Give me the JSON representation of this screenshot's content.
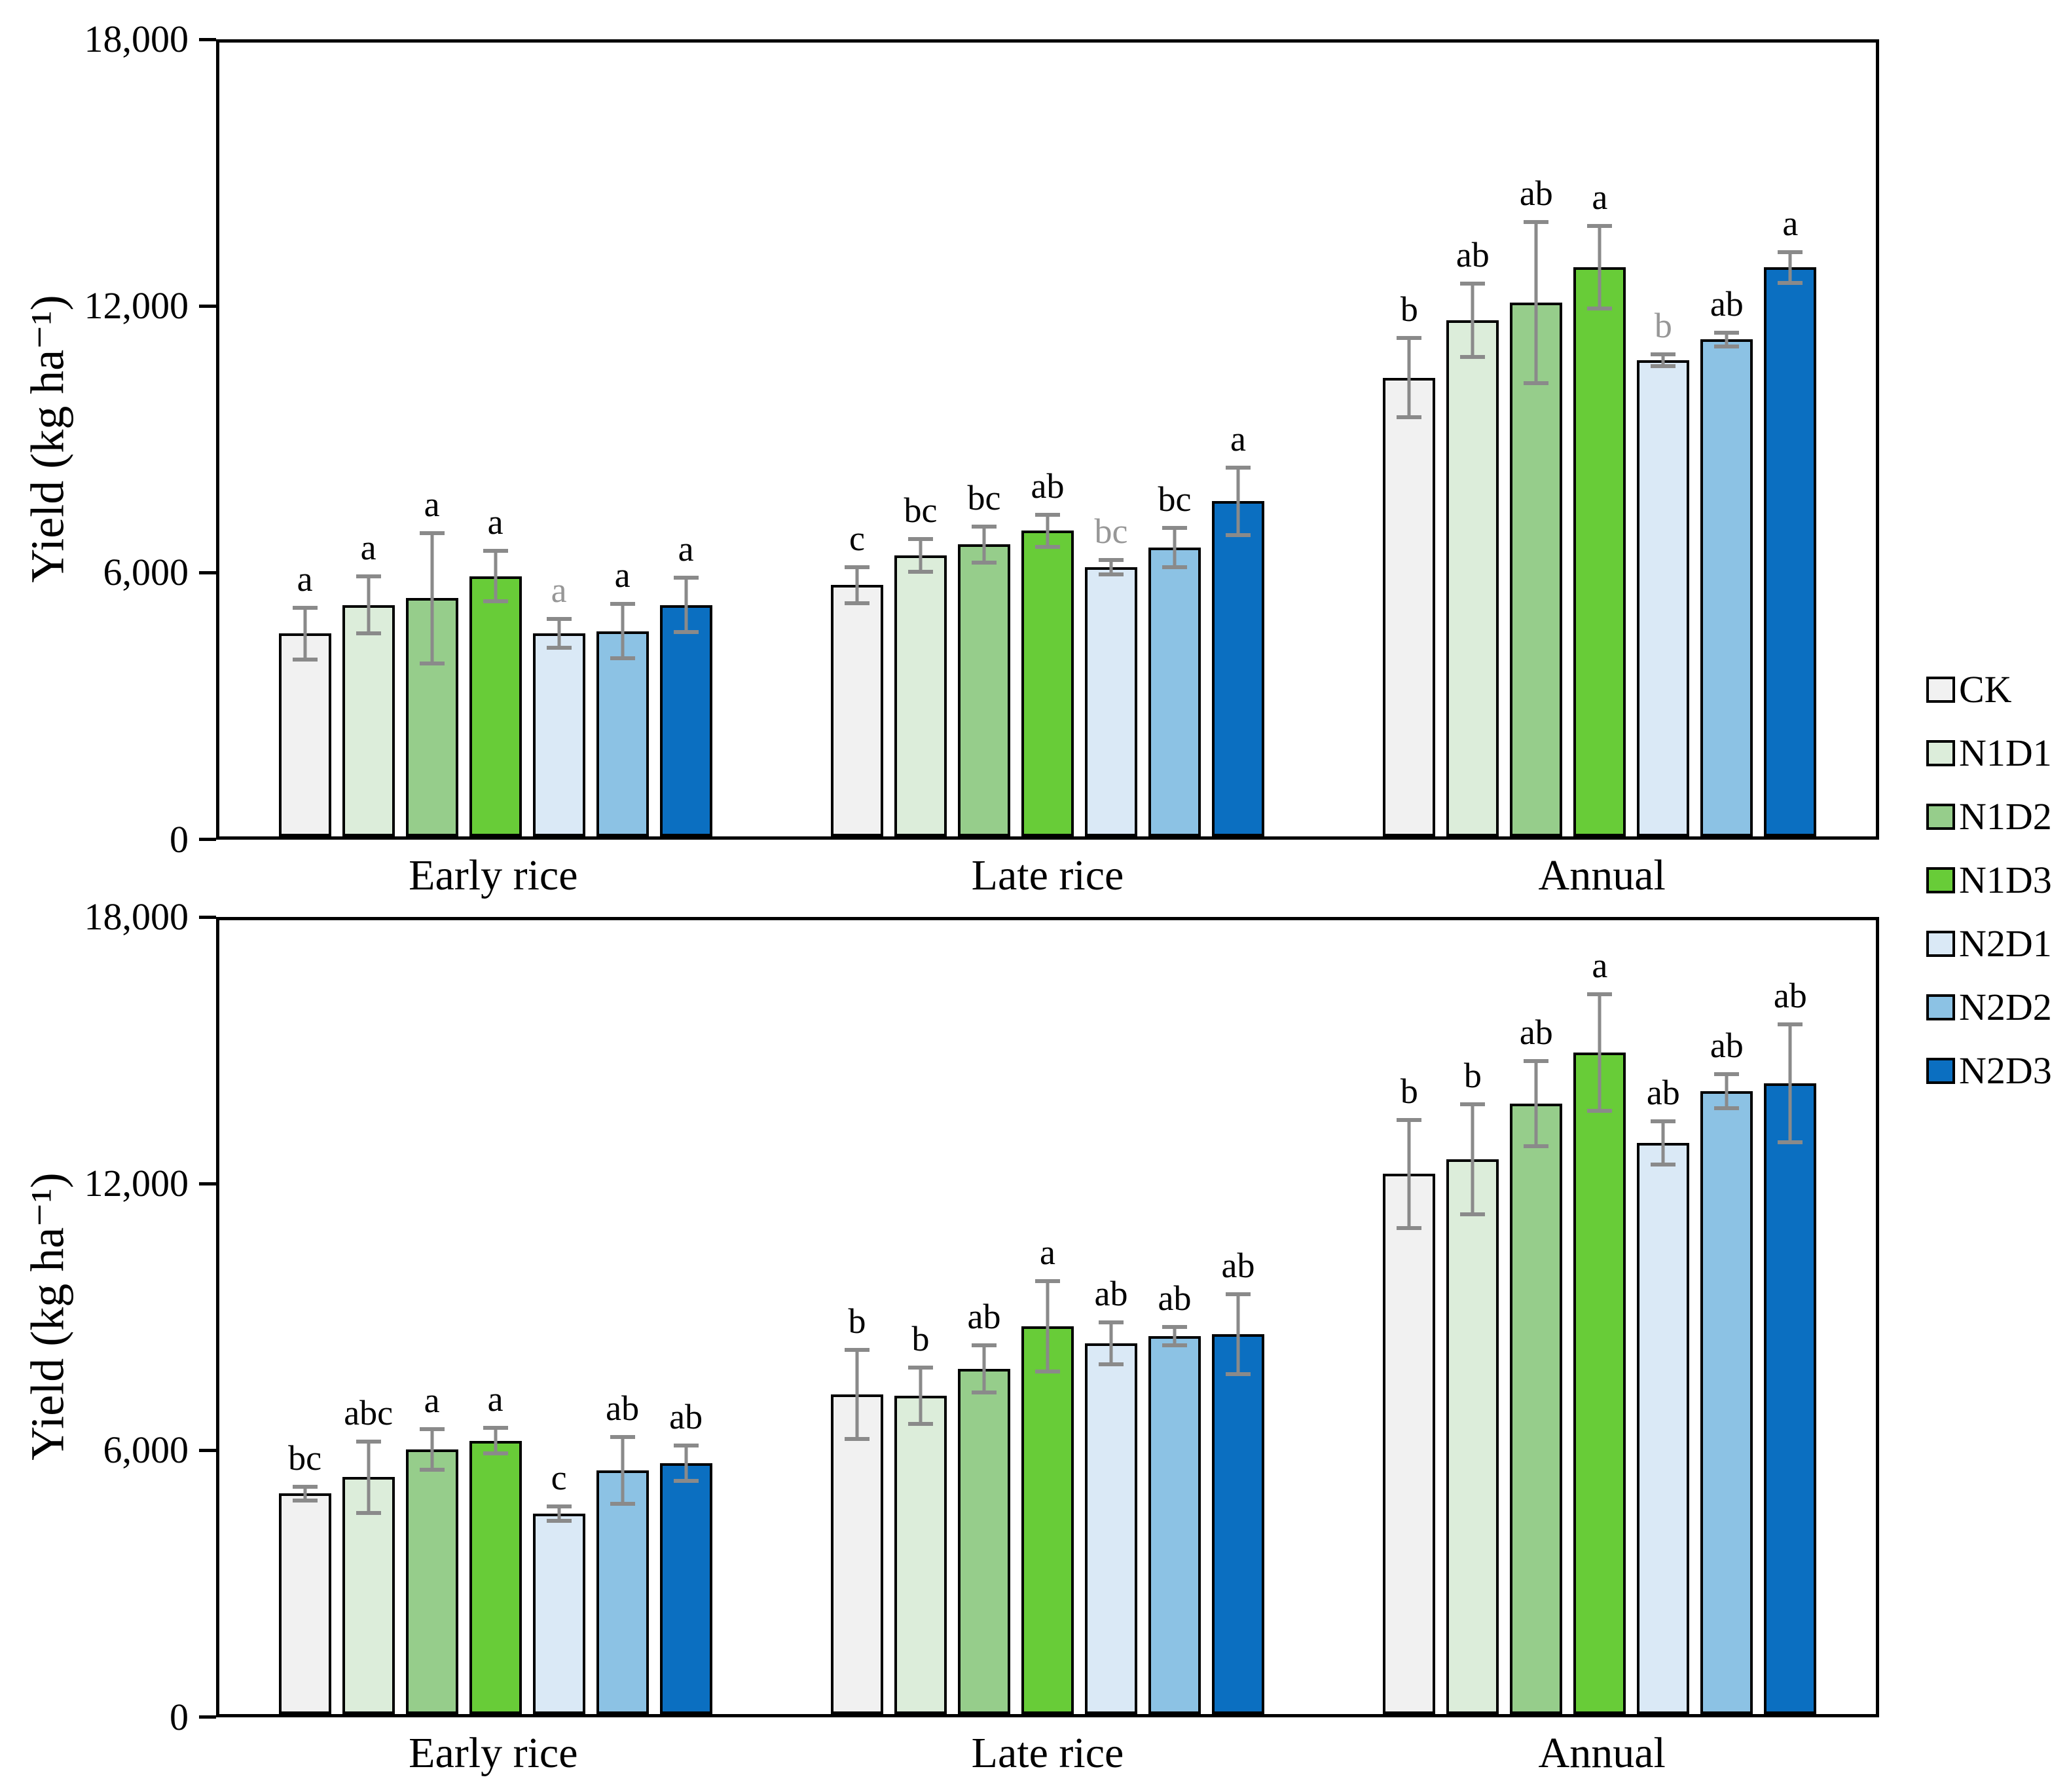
{
  "y_axis": {
    "label": "Yield (kg ha⁻¹)",
    "tick_labels_top_to_bottom": [
      "18,000",
      "12,000",
      "6,000",
      "0"
    ]
  },
  "legend": {
    "items": [
      {
        "label": "CK",
        "color": "#f1f1f1"
      },
      {
        "label": "N1D1",
        "color": "#dcedda"
      },
      {
        "label": "N1D2",
        "color": "#96cd8b"
      },
      {
        "label": "N1D3",
        "color": "#68cc38"
      },
      {
        "label": "N2D1",
        "color": "#dae9f6"
      },
      {
        "label": "N2D2",
        "color": "#8cc2e4"
      },
      {
        "label": "N2D3",
        "color": "#0b6fc1"
      }
    ]
  },
  "colors": {
    "error_bar": "#8a8a8a",
    "bar_border": "#000000",
    "gray_letter": "#979797",
    "black_letter": "#000000"
  },
  "chart_data": [
    {
      "type": "bar",
      "panel": "top",
      "title": "",
      "xlabel": "",
      "ylabel": "Yield (kg ha⁻¹)",
      "ylim": [
        0,
        18000
      ],
      "ytick_values": [
        0,
        6000,
        12000,
        18000
      ],
      "ytick_labels": [
        "0",
        "6,000",
        "12,000",
        "18,000"
      ],
      "grid": false,
      "legend_position": "right-middle",
      "categories": [
        "Early rice",
        "Late rice",
        "Annual"
      ],
      "series": [
        {
          "name": "CK",
          "color": "#f1f1f1",
          "values": [
            4600,
            5700,
            10400
          ],
          "errors": [
            630,
            450,
            940
          ],
          "letters": [
            "a",
            "c",
            "b"
          ],
          "gray_letters": [
            false,
            false,
            false
          ]
        },
        {
          "name": "N1D1",
          "color": "#dcedda",
          "values": [
            5250,
            6370,
            11700
          ],
          "errors": [
            690,
            420,
            880
          ],
          "letters": [
            "a",
            "bc",
            "ab"
          ],
          "gray_letters": [
            false,
            false,
            false
          ]
        },
        {
          "name": "N1D2",
          "color": "#96cd8b",
          "values": [
            5400,
            6620,
            12100
          ],
          "errors": [
            1520,
            450,
            1870
          ],
          "letters": [
            "a",
            "bc",
            "ab"
          ],
          "gray_letters": [
            false,
            false,
            false
          ]
        },
        {
          "name": "N1D3",
          "color": "#68cc38",
          "values": [
            5900,
            6930,
            12900
          ],
          "errors": [
            620,
            410,
            980
          ],
          "letters": [
            "a",
            "ab",
            "a"
          ],
          "gray_letters": [
            false,
            false,
            false
          ]
        },
        {
          "name": "N2D1",
          "color": "#dae9f6",
          "values": [
            4600,
            6100,
            10800
          ],
          "errors": [
            370,
            210,
            180
          ],
          "letters": [
            "a",
            "bc",
            "b"
          ],
          "gray_letters": [
            true,
            true,
            true
          ]
        },
        {
          "name": "N2D2",
          "color": "#8cc2e4",
          "values": [
            4650,
            6550,
            11270
          ],
          "errors": [
            660,
            490,
            200
          ],
          "letters": [
            "a",
            "bc",
            "ab"
          ],
          "gray_letters": [
            false,
            false,
            false
          ]
        },
        {
          "name": "N2D3",
          "color": "#0b6fc1",
          "values": [
            5250,
            7600,
            12900
          ],
          "errors": [
            660,
            810,
            390
          ],
          "letters": [
            "a",
            "a",
            "a"
          ],
          "gray_letters": [
            false,
            false,
            false
          ]
        }
      ]
    },
    {
      "type": "bar",
      "panel": "bottom",
      "title": "",
      "xlabel": "",
      "ylabel": "Yield (kg ha⁻¹)",
      "ylim": [
        0,
        18000
      ],
      "ytick_values": [
        0,
        6000,
        12000,
        18000
      ],
      "ytick_labels": [
        "0",
        "6,000",
        "12,000",
        "18,000"
      ],
      "grid": false,
      "legend_position": "right-middle",
      "categories": [
        "Early rice",
        "Late rice",
        "Annual"
      ],
      "series": [
        {
          "name": "CK",
          "color": "#f1f1f1",
          "values": [
            5000,
            7250,
            12250
          ],
          "errors": [
            200,
            1050,
            1270
          ],
          "letters": [
            "bc",
            "b",
            "b"
          ],
          "gray_letters": [
            false,
            false,
            false
          ]
        },
        {
          "name": "N1D1",
          "color": "#dcedda",
          "values": [
            5370,
            7220,
            12580
          ],
          "errors": [
            850,
            680,
            1290
          ],
          "letters": [
            "abc",
            "b",
            "b"
          ],
          "gray_letters": [
            false,
            false,
            false
          ]
        },
        {
          "name": "N1D2",
          "color": "#96cd8b",
          "values": [
            6000,
            7830,
            13840
          ],
          "errors": [
            500,
            580,
            1010
          ],
          "letters": [
            "a",
            "ab",
            "ab"
          ],
          "gray_letters": [
            false,
            false,
            false
          ]
        },
        {
          "name": "N1D3",
          "color": "#68cc38",
          "values": [
            6200,
            8790,
            15000
          ],
          "errors": [
            340,
            1070,
            1370
          ],
          "letters": [
            "a",
            "a",
            "a"
          ],
          "gray_letters": [
            false,
            false,
            false
          ]
        },
        {
          "name": "N2D1",
          "color": "#dae9f6",
          "values": [
            4550,
            8400,
            12950
          ],
          "errors": [
            210,
            520,
            540
          ],
          "letters": [
            "c",
            "ab",
            "ab"
          ],
          "gray_letters": [
            false,
            false,
            false
          ]
        },
        {
          "name": "N2D2",
          "color": "#8cc2e4",
          "values": [
            5520,
            8570,
            14120
          ],
          "errors": [
            800,
            250,
            430
          ],
          "letters": [
            "ab",
            "ab",
            "ab"
          ],
          "gray_letters": [
            false,
            false,
            false
          ]
        },
        {
          "name": "N2D3",
          "color": "#0b6fc1",
          "values": [
            5690,
            8610,
            14300
          ],
          "errors": [
            450,
            950,
            1380
          ],
          "letters": [
            "ab",
            "ab",
            "ab"
          ],
          "gray_letters": [
            false,
            false,
            false
          ]
        }
      ]
    }
  ]
}
